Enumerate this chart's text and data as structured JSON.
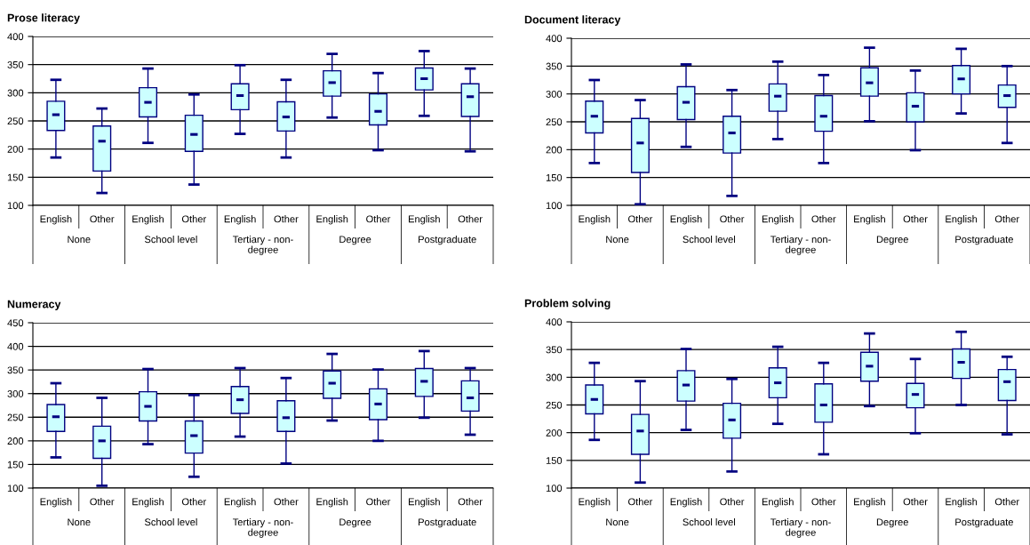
{
  "chart_data": [
    {
      "type": "box",
      "title": "Prose literacy",
      "color": "#ccffff",
      "categories": [
        "English",
        "Other",
        "English",
        "Other",
        "English",
        "Other",
        "English",
        "Other",
        "English",
        "Other"
      ],
      "annotations": [
        "None",
        "School level",
        "Tertiary - non-degree",
        "Degree",
        "Postgraduate"
      ],
      "ylim": [
        100,
        400
      ],
      "yticks": [
        100,
        150,
        200,
        250,
        300,
        350,
        400
      ],
      "grid": "y",
      "boxes": [
        {
          "low": 185,
          "q1": 233,
          "median": 261,
          "q3": 285,
          "high": 323
        },
        {
          "low": 122,
          "q1": 161,
          "median": 214,
          "q3": 241,
          "high": 272
        },
        {
          "low": 211,
          "q1": 257,
          "median": 283,
          "q3": 309,
          "high": 343
        },
        {
          "low": 137,
          "q1": 196,
          "median": 226,
          "q3": 260,
          "high": 297
        },
        {
          "low": 227,
          "q1": 270,
          "median": 295,
          "q3": 316,
          "high": 349
        },
        {
          "low": 185,
          "q1": 232,
          "median": 257,
          "q3": 284,
          "high": 323
        },
        {
          "low": 256,
          "q1": 294,
          "median": 318,
          "q3": 339,
          "high": 369
        },
        {
          "low": 198,
          "q1": 243,
          "median": 267,
          "q3": 298,
          "high": 335
        },
        {
          "low": 259,
          "q1": 305,
          "median": 325,
          "q3": 344,
          "high": 374
        },
        {
          "low": 196,
          "q1": 258,
          "median": 293,
          "q3": 316,
          "high": 343
        }
      ]
    },
    {
      "type": "box",
      "title": "Document literacy",
      "color": "#ccffff",
      "categories": [
        "English",
        "Other",
        "English",
        "Other",
        "English",
        "Other",
        "English",
        "Other",
        "English",
        "Other"
      ],
      "annotations": [
        "None",
        "School level",
        "Tertiary - non-degree",
        "Degree",
        "Postgraduate"
      ],
      "ylim": [
        100,
        400
      ],
      "yticks": [
        100,
        150,
        200,
        250,
        300,
        350,
        400
      ],
      "grid": "y",
      "boxes": [
        {
          "low": 176,
          "q1": 230,
          "median": 260,
          "q3": 287,
          "high": 325
        },
        {
          "low": 102,
          "q1": 159,
          "median": 212,
          "q3": 256,
          "high": 289
        },
        {
          "low": 205,
          "q1": 254,
          "median": 285,
          "q3": 313,
          "high": 353
        },
        {
          "low": 117,
          "q1": 194,
          "median": 230,
          "q3": 260,
          "high": 307
        },
        {
          "low": 219,
          "q1": 269,
          "median": 296,
          "q3": 318,
          "high": 358
        },
        {
          "low": 176,
          "q1": 233,
          "median": 260,
          "q3": 297,
          "high": 334
        },
        {
          "low": 251,
          "q1": 296,
          "median": 320,
          "q3": 347,
          "high": 383
        },
        {
          "low": 199,
          "q1": 250,
          "median": 278,
          "q3": 302,
          "high": 342
        },
        {
          "low": 265,
          "q1": 300,
          "median": 327,
          "q3": 351,
          "high": 381
        },
        {
          "low": 212,
          "q1": 276,
          "median": 297,
          "q3": 316,
          "high": 350
        }
      ]
    },
    {
      "type": "box",
      "title": "Numeracy",
      "color": "#ccffff",
      "categories": [
        "English",
        "Other",
        "English",
        "Other",
        "English",
        "Other",
        "English",
        "Other",
        "English",
        "Other"
      ],
      "annotations": [
        "None",
        "School level",
        "Tertiary - non-degree",
        "Degree",
        "Postgraduate"
      ],
      "ylim": [
        100,
        450
      ],
      "yticks": [
        100,
        150,
        200,
        250,
        300,
        350,
        400,
        450
      ],
      "grid": "y",
      "boxes": [
        {
          "low": 165,
          "q1": 220,
          "median": 251,
          "q3": 277,
          "high": 322
        },
        {
          "low": 105,
          "q1": 163,
          "median": 200,
          "q3": 231,
          "high": 291
        },
        {
          "low": 193,
          "q1": 242,
          "median": 273,
          "q3": 304,
          "high": 352
        },
        {
          "low": 124,
          "q1": 174,
          "median": 211,
          "q3": 242,
          "high": 297
        },
        {
          "low": 209,
          "q1": 258,
          "median": 287,
          "q3": 315,
          "high": 354
        },
        {
          "low": 152,
          "q1": 220,
          "median": 249,
          "q3": 285,
          "high": 333
        },
        {
          "low": 243,
          "q1": 290,
          "median": 322,
          "q3": 348,
          "high": 384
        },
        {
          "low": 200,
          "q1": 245,
          "median": 278,
          "q3": 310,
          "high": 351
        },
        {
          "low": 249,
          "q1": 294,
          "median": 326,
          "q3": 353,
          "high": 390
        },
        {
          "low": 213,
          "q1": 263,
          "median": 291,
          "q3": 327,
          "high": 354
        }
      ]
    },
    {
      "type": "box",
      "title": "Problem solving",
      "color": "#ccffff",
      "categories": [
        "English",
        "Other",
        "English",
        "Other",
        "English",
        "Other",
        "English",
        "Other",
        "English",
        "Other"
      ],
      "annotations": [
        "None",
        "School level",
        "Tertiary - non-degree",
        "Degree",
        "Postgraduate"
      ],
      "ylim": [
        100,
        400
      ],
      "yticks": [
        100,
        150,
        200,
        250,
        300,
        350,
        400
      ],
      "grid": "y",
      "boxes": [
        {
          "low": 187,
          "q1": 234,
          "median": 260,
          "q3": 286,
          "high": 326
        },
        {
          "low": 110,
          "q1": 161,
          "median": 203,
          "q3": 233,
          "high": 293
        },
        {
          "low": 205,
          "q1": 257,
          "median": 286,
          "q3": 312,
          "high": 351
        },
        {
          "low": 130,
          "q1": 190,
          "median": 223,
          "q3": 253,
          "high": 297
        },
        {
          "low": 216,
          "q1": 263,
          "median": 290,
          "q3": 317,
          "high": 355
        },
        {
          "low": 161,
          "q1": 219,
          "median": 250,
          "q3": 288,
          "high": 326
        },
        {
          "low": 248,
          "q1": 293,
          "median": 320,
          "q3": 345,
          "high": 379
        },
        {
          "low": 199,
          "q1": 245,
          "median": 269,
          "q3": 289,
          "high": 333
        },
        {
          "low": 250,
          "q1": 298,
          "median": 327,
          "q3": 351,
          "high": 382
        },
        {
          "low": 197,
          "q1": 258,
          "median": 292,
          "q3": 314,
          "high": 337
        }
      ]
    }
  ]
}
